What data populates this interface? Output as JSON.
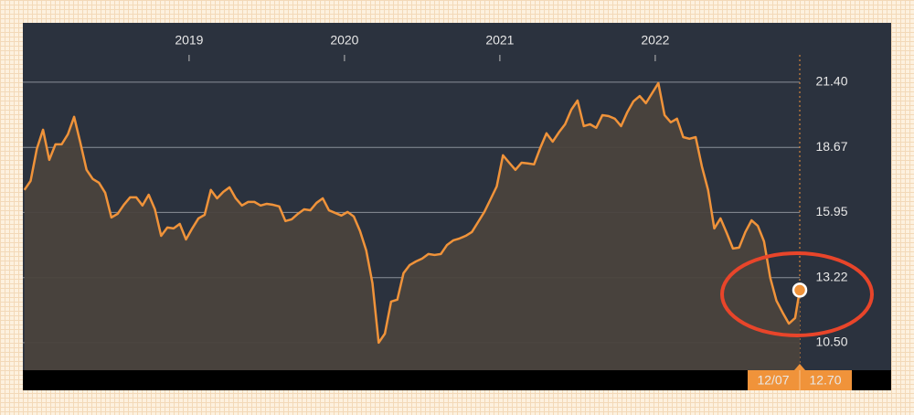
{
  "chart_data": {
    "type": "line",
    "x": [
      2017.94,
      2017.98,
      2018.02,
      2018.06,
      2018.1,
      2018.14,
      2018.18,
      2018.22,
      2018.26,
      2018.3,
      2018.34,
      2018.38,
      2018.42,
      2018.46,
      2018.5,
      2018.54,
      2018.58,
      2018.62,
      2018.66,
      2018.7,
      2018.74,
      2018.78,
      2018.82,
      2018.86,
      2018.9,
      2018.94,
      2018.98,
      2019.02,
      2019.06,
      2019.1,
      2019.14,
      2019.18,
      2019.22,
      2019.26,
      2019.3,
      2019.34,
      2019.38,
      2019.42,
      2019.46,
      2019.5,
      2019.54,
      2019.58,
      2019.62,
      2019.66,
      2019.7,
      2019.74,
      2019.78,
      2019.82,
      2019.86,
      2019.9,
      2019.94,
      2019.98,
      2020.02,
      2020.06,
      2020.1,
      2020.14,
      2020.18,
      2020.22,
      2020.26,
      2020.3,
      2020.34,
      2020.38,
      2020.42,
      2020.46,
      2020.5,
      2020.54,
      2020.58,
      2020.62,
      2020.66,
      2020.7,
      2020.74,
      2020.78,
      2020.82,
      2020.86,
      2020.9,
      2020.94,
      2020.98,
      2021.02,
      2021.06,
      2021.1,
      2021.14,
      2021.18,
      2021.22,
      2021.26,
      2021.3,
      2021.34,
      2021.38,
      2021.42,
      2021.46,
      2021.5,
      2021.54,
      2021.58,
      2021.62,
      2021.66,
      2021.7,
      2021.74,
      2021.78,
      2021.82,
      2021.86,
      2021.9,
      2021.94,
      2021.98,
      2022.02,
      2022.06,
      2022.1,
      2022.14,
      2022.18,
      2022.22,
      2022.26,
      2022.3,
      2022.34,
      2022.38,
      2022.42,
      2022.46,
      2022.5,
      2022.54,
      2022.58,
      2022.62,
      2022.66,
      2022.7,
      2022.74,
      2022.78,
      2022.82,
      2022.86,
      2022.9,
      2022.93
    ],
    "series": [
      {
        "color": "#f0933a",
        "values": [
          16.89,
          17.27,
          18.61,
          19.41,
          18.15,
          18.8,
          18.8,
          19.22,
          19.95,
          18.87,
          17.73,
          17.35,
          17.19,
          16.77,
          15.74,
          15.89,
          16.27,
          16.58,
          16.58,
          16.24,
          16.69,
          16.08,
          14.97,
          15.32,
          15.28,
          15.47,
          14.82,
          15.28,
          15.7,
          15.85,
          16.89,
          16.54,
          16.81,
          17.0,
          16.54,
          16.24,
          16.39,
          16.39,
          16.24,
          16.31,
          16.27,
          16.2,
          15.59,
          15.66,
          15.89,
          16.08,
          16.04,
          16.35,
          16.54,
          16.04,
          15.93,
          15.82,
          15.97,
          15.78,
          15.17,
          14.36,
          12.99,
          10.5,
          10.88,
          12.22,
          12.3,
          13.41,
          13.75,
          13.9,
          14.02,
          14.21,
          14.17,
          14.21,
          14.59,
          14.78,
          14.86,
          14.97,
          15.13,
          15.55,
          15.97,
          16.5,
          17.04,
          18.34,
          18.03,
          17.73,
          18.03,
          18.0,
          17.96,
          18.65,
          19.26,
          18.91,
          19.3,
          19.64,
          20.25,
          20.63,
          19.56,
          19.64,
          19.49,
          20.02,
          19.98,
          19.87,
          19.56,
          20.14,
          20.6,
          20.82,
          20.52,
          20.94,
          21.36,
          20.02,
          19.72,
          19.87,
          19.1,
          19.03,
          19.1,
          17.88,
          16.89,
          15.28,
          15.7,
          15.09,
          14.44,
          14.48,
          15.13,
          15.62,
          15.39,
          14.74,
          13.22,
          12.26,
          11.76,
          11.3,
          11.53,
          12.7
        ]
      }
    ],
    "xlim": [
      2017.93,
      2022.93
    ],
    "xticks": [
      2019,
      2020,
      2021,
      2022
    ],
    "ylim": [
      9.35,
      23.88
    ],
    "yticks": [
      {
        "value": 21.4,
        "label": "21.40"
      },
      18.67,
      15.95,
      13.22,
      {
        "value": 10.5,
        "label": "10.50"
      }
    ],
    "grid": true,
    "last_label": {
      "date": "12/07",
      "value": "12.70"
    }
  }
}
